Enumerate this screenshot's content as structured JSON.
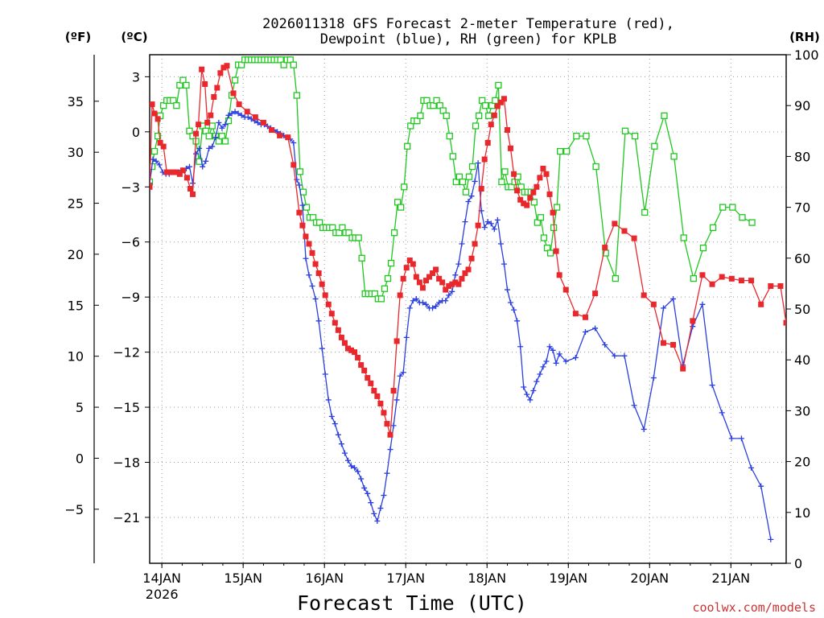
{
  "header": {
    "title_line1": "2026011318 GFS Forecast 2-meter Temperature (red),",
    "title_line2": "Dewpoint (blue), RH (green) for KPLB",
    "unit_f": "(ºF)",
    "unit_c": "(ºC)",
    "unit_rh": "(RH)"
  },
  "footer": {
    "xlabel": "Forecast Time (UTC)",
    "credit": "coolwx.com/models"
  },
  "chart_data": {
    "type": "line",
    "title": "2026011318 GFS Forecast 2-meter Temperature (red), Dewpoint (blue), RH (green) for KPLB",
    "xlabel": "Forecast Time (UTC)",
    "x_unit": "days since 2026-01-14 00Z",
    "xlim": [
      -0.15,
      7.68
    ],
    "x_ticks": [
      {
        "x": 0,
        "label": "14JAN",
        "sublabel": "2026"
      },
      {
        "x": 1,
        "label": "15JAN"
      },
      {
        "x": 2,
        "label": "16JAN"
      },
      {
        "x": 3,
        "label": "17JAN"
      },
      {
        "x": 4,
        "label": "18JAN"
      },
      {
        "x": 5,
        "label": "19JAN"
      },
      {
        "x": 6,
        "label": "20JAN"
      },
      {
        "x": 7,
        "label": "21JAN"
      }
    ],
    "y_celsius": {
      "label": "(ºC)",
      "ylim": [
        -23.5,
        4.2
      ],
      "ticks": [
        3,
        0,
        -3,
        -6,
        -9,
        -12,
        -15,
        -18,
        -21
      ]
    },
    "y_fahrenheit": {
      "label": "(ºF)",
      "ylim": [
        -10.3,
        39.56
      ],
      "ticks": [
        35,
        30,
        25,
        20,
        15,
        10,
        5,
        0,
        -5
      ]
    },
    "y_rh": {
      "label": "(RH)",
      "ylim": [
        0,
        100
      ],
      "ticks": [
        100,
        90,
        80,
        70,
        60,
        50,
        40,
        30,
        20,
        10,
        0
      ]
    },
    "grid": true,
    "series": [
      {
        "name": "2-meter Temperature",
        "color": "#e8282d",
        "axis": "celsius",
        "marker": "filled-square",
        "x": [
          -0.15,
          -0.1,
          -0.06,
          -0.02,
          0.02,
          0.06,
          0.1,
          0.15,
          0.19,
          0.23,
          0.27,
          0.31,
          0.35,
          0.41,
          0.45,
          0.49,
          0.52,
          0.56,
          0.6,
          0.64,
          0.68,
          0.72,
          0.76,
          0.8,
          0.84,
          0.88,
          0.92,
          1.0,
          1.1,
          1.2,
          1.3,
          1.4,
          1.5,
          1.58,
          1.63,
          1.69,
          1.73,
          1.77,
          1.81,
          1.85,
          1.88,
          1.92,
          1.96,
          2.0,
          2.04,
          2.08,
          2.12,
          2.17,
          2.21,
          2.25,
          2.29,
          2.33,
          2.37,
          2.41,
          2.45,
          2.49,
          2.52,
          2.56,
          2.6,
          2.64,
          2.69,
          2.73,
          2.77,
          2.81,
          2.85,
          2.89,
          2.93,
          2.97,
          3.01,
          3.05,
          3.09,
          3.13,
          3.17,
          3.21,
          3.25,
          3.29,
          3.33,
          3.37,
          3.41,
          3.45,
          3.49,
          3.53,
          3.57,
          3.61,
          3.65,
          3.69,
          3.73,
          3.77,
          3.81,
          3.85,
          3.89,
          3.93,
          3.97,
          4.01,
          4.05,
          4.09,
          4.13,
          4.17,
          4.21,
          4.25,
          4.29,
          4.33,
          4.37,
          4.41,
          4.45,
          4.49,
          4.53,
          4.57,
          4.61,
          4.65,
          4.69,
          4.73,
          4.77,
          4.81,
          4.85,
          4.89,
          4.97,
          5.09,
          5.21,
          5.33,
          5.45,
          5.57,
          5.69,
          5.81,
          5.93,
          6.05,
          6.17,
          6.29,
          6.41,
          6.53,
          6.65,
          6.77,
          6.89,
          7.01,
          7.13,
          7.25,
          7.37
        ]
      },
      {
        "name": "Dewpoint",
        "color": "#2b3fe0",
        "axis": "celsius",
        "marker": "plus",
        "x": []
      },
      {
        "name": "Relative Humidity",
        "color": "#1ec81e",
        "axis": "rh",
        "marker": "open-square",
        "x": []
      }
    ]
  }
}
